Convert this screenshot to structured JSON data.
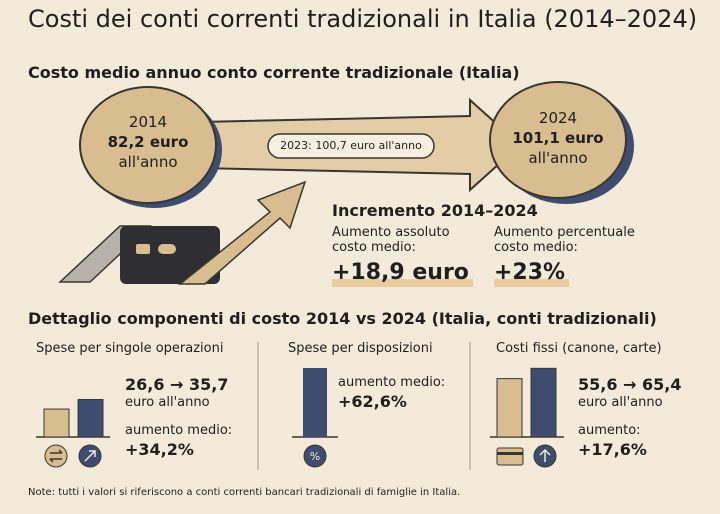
{
  "title": "Costi dei conti correnti tradizionali in Italia (2014–2024)",
  "subtitle": "Costo medio annuo conto corrente tradizionale (Italia)",
  "start": {
    "year": "2014",
    "amount": "82,2 euro",
    "unit": "all'anno"
  },
  "end": {
    "year": "2024",
    "amount": "101,1 euro",
    "unit": "all'anno"
  },
  "midpoint": "2023: 100,7 euro all'anno",
  "increment": {
    "title": "Incremento 2014–2024",
    "absolute": {
      "label": "Aumento assoluto\ncosto medio:",
      "value": "+18,9 euro"
    },
    "percent": {
      "label": "Aumento percentuale\ncosto medio:",
      "value": "+23%"
    }
  },
  "breakdown": {
    "title": "Dettaglio componenti di costo 2014 vs 2024 (Italia, conti tradizionali)",
    "panels": [
      {
        "title": "Spese per singole operazioni",
        "range": "26,6 → 35,7",
        "unit": "euro all'anno",
        "increase_label": "aumento medio:",
        "increase": "+34,2%",
        "bars": [
          26.6,
          35.7
        ]
      },
      {
        "title": "Spese per disposizioni",
        "increase_label": "aumento medio:",
        "increase": "+62,6%"
      },
      {
        "title": "Costi fissi (canone, carte)",
        "range": "55,6 → 65,4",
        "unit": "euro all'anno",
        "increase_label": "aumento:",
        "increase": "+17,6%",
        "bars": [
          55.6,
          65.4
        ]
      }
    ]
  },
  "note": "Note: tutti i valori si riferiscono a conti correnti bancari tradizionali di famiglie in Italia."
}
